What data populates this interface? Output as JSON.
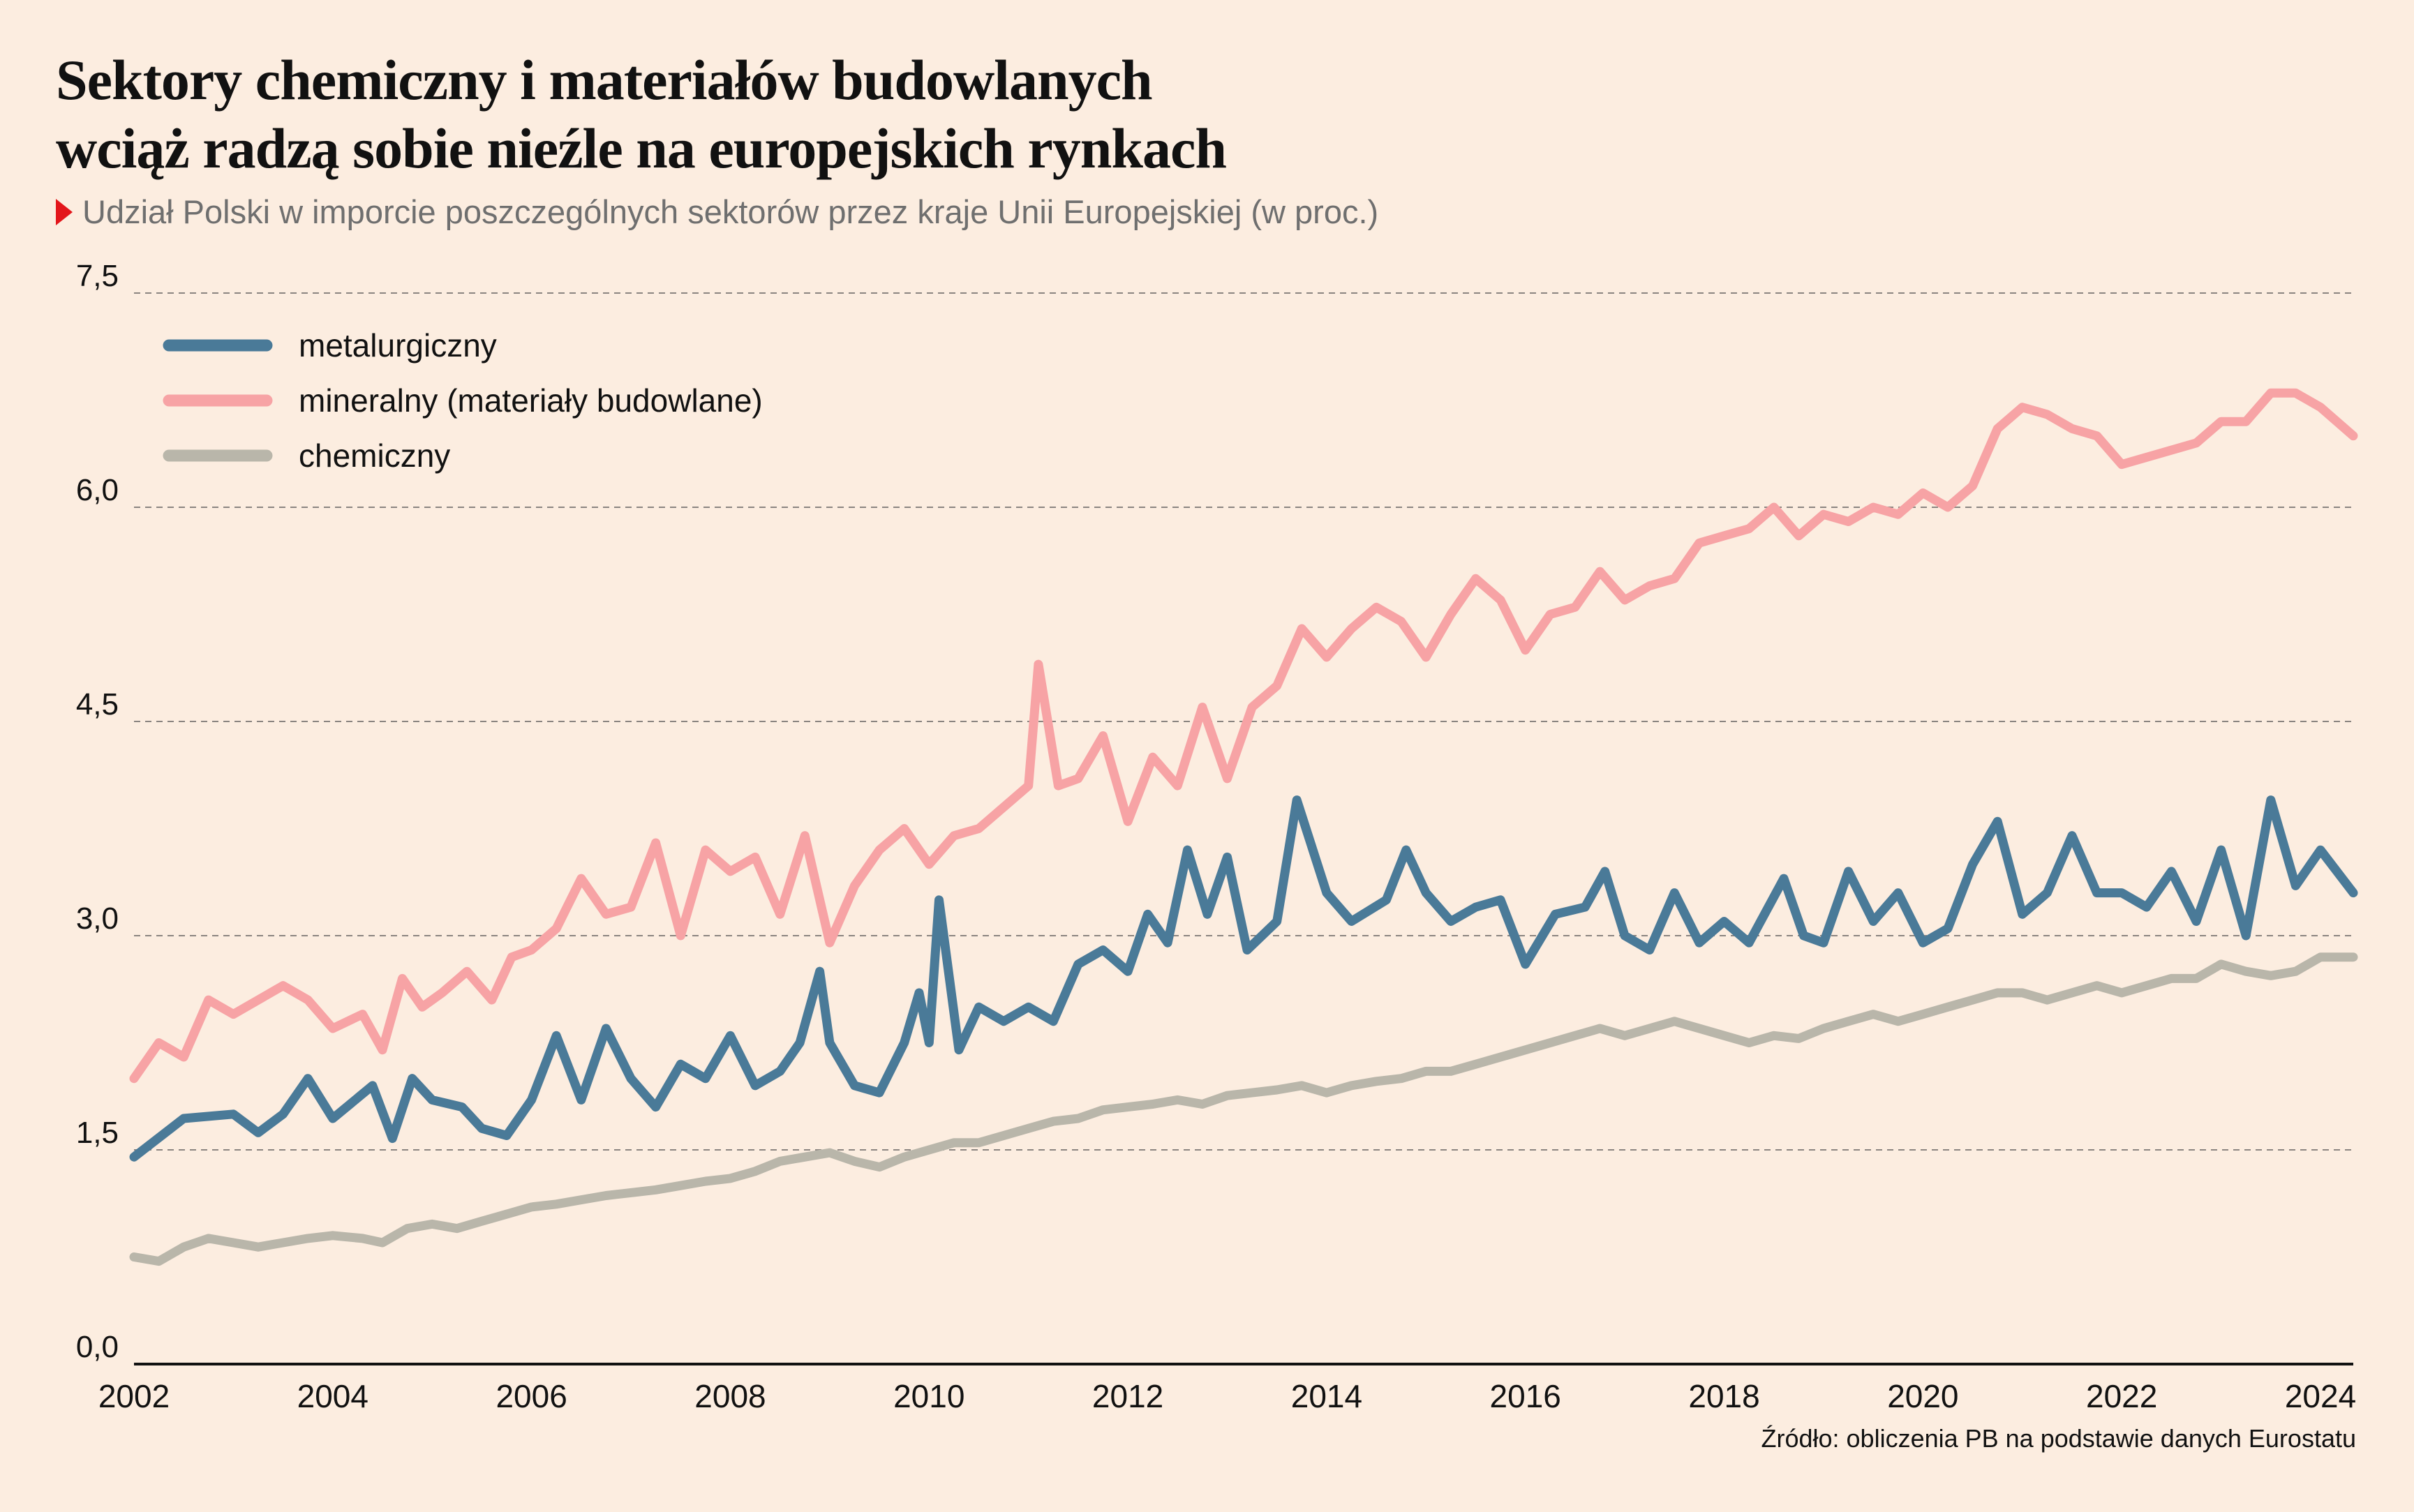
{
  "title": {
    "line1": "Sektory chemiczny i materiałów budowlanych",
    "line2": "wciąż radzą sobie nieźle na europejskich rynkach"
  },
  "subtitle": "Udział Polski w imporcie poszczególnych sektorów przez kraje Unii Europejskiej (w proc.)",
  "source": "Źródło: obliczenia PB na podstawie danych Eurostatu",
  "colors": {
    "background": "#fcede0",
    "metalurgiczny": "#4a7a98",
    "mineralny": "#f7a3a5",
    "chemiczny": "#b9b6aa",
    "accent": "#e3161b"
  },
  "chart_data": {
    "type": "line",
    "title": "Sektory chemiczny i materiałów budowlanych wciąż radzą sobie nieźle na europejskich rynkach",
    "subtitle": "Udział Polski w imporcie poszczególnych sektorów przez kraje Unii Europejskiej (w proc.)",
    "xlabel": "",
    "ylabel": "",
    "xlim": [
      2002.0,
      2024.33
    ],
    "ylim": [
      0,
      7.5
    ],
    "yticks": [
      0.0,
      1.5,
      3.0,
      4.5,
      6.0,
      7.5
    ],
    "ytick_labels": [
      "0,0",
      "1,5",
      "3,0",
      "4,5",
      "6,0",
      "7,5"
    ],
    "xticks": [
      2002,
      2004,
      2006,
      2008,
      2010,
      2012,
      2014,
      2016,
      2018,
      2020,
      2022,
      2024
    ],
    "xtick_labels": [
      "2002",
      "2004",
      "2006",
      "2008",
      "2010",
      "2012",
      "2014",
      "2016",
      "2018",
      "2020",
      "2022",
      "2024"
    ],
    "grid": "horizontal dashed",
    "legend_position": "top-left",
    "series": [
      {
        "name": "metalurgiczny",
        "color": "#4a7a98",
        "x": [
          2002.0,
          2002.5,
          2003.0,
          2003.25,
          2003.5,
          2003.75,
          2004.0,
          2004.4,
          2004.6,
          2004.8,
          2005.0,
          2005.3,
          2005.5,
          2005.75,
          2006.0,
          2006.25,
          2006.5,
          2006.75,
          2007.0,
          2007.25,
          2007.5,
          2007.75,
          2008.0,
          2008.25,
          2008.5,
          2008.7,
          2008.9,
          2009.0,
          2009.25,
          2009.5,
          2009.75,
          2009.9,
          2010.0,
          2010.1,
          2010.3,
          2010.5,
          2010.75,
          2011.0,
          2011.25,
          2011.5,
          2011.75,
          2012.0,
          2012.2,
          2012.4,
          2012.6,
          2012.8,
          2013.0,
          2013.2,
          2013.5,
          2013.7,
          2014.0,
          2014.25,
          2014.6,
          2014.8,
          2015.0,
          2015.25,
          2015.5,
          2015.75,
          2016.0,
          2016.3,
          2016.6,
          2016.8,
          2017.0,
          2017.25,
          2017.5,
          2017.75,
          2018.0,
          2018.25,
          2018.6,
          2018.8,
          2019.0,
          2019.25,
          2019.5,
          2019.75,
          2020.0,
          2020.25,
          2020.5,
          2020.75,
          2021.0,
          2021.25,
          2021.5,
          2021.75,
          2022.0,
          2022.25,
          2022.5,
          2022.75,
          2023.0,
          2023.25,
          2023.5,
          2023.75,
          2024.0,
          2024.33
        ],
        "values": [
          1.45,
          1.72,
          1.75,
          1.62,
          1.75,
          2.0,
          1.72,
          1.95,
          1.58,
          2.0,
          1.85,
          1.8,
          1.65,
          1.6,
          1.85,
          2.3,
          1.85,
          2.35,
          2.0,
          1.8,
          2.1,
          2.0,
          2.3,
          1.95,
          2.05,
          2.25,
          2.75,
          2.25,
          1.95,
          1.9,
          2.25,
          2.6,
          2.25,
          3.25,
          2.2,
          2.5,
          2.4,
          2.5,
          2.4,
          2.8,
          2.9,
          2.75,
          3.15,
          2.95,
          3.6,
          3.15,
          3.55,
          2.9,
          3.1,
          3.95,
          3.3,
          3.1,
          3.25,
          3.6,
          3.3,
          3.1,
          3.2,
          3.25,
          2.8,
          3.15,
          3.2,
          3.45,
          3.0,
          2.9,
          3.3,
          2.95,
          3.1,
          2.95,
          3.4,
          3.0,
          2.95,
          3.45,
          3.1,
          3.3,
          2.95,
          3.05,
          3.5,
          3.8,
          3.15,
          3.3,
          3.7,
          3.3,
          3.3,
          3.2,
          3.45,
          3.1,
          3.6,
          3.0,
          3.95,
          3.35,
          3.6,
          3.3
        ]
      },
      {
        "name": "mineralny (materiały budowlane)",
        "color": "#f7a3a5",
        "x": [
          2002.0,
          2002.25,
          2002.5,
          2002.75,
          2003.0,
          2003.25,
          2003.5,
          2003.75,
          2004.0,
          2004.3,
          2004.5,
          2004.7,
          2004.9,
          2005.1,
          2005.35,
          2005.6,
          2005.8,
          2006.0,
          2006.25,
          2006.5,
          2006.75,
          2007.0,
          2007.25,
          2007.5,
          2007.75,
          2008.0,
          2008.25,
          2008.5,
          2008.75,
          2009.0,
          2009.25,
          2009.5,
          2009.75,
          2010.0,
          2010.25,
          2010.5,
          2010.75,
          2011.0,
          2011.1,
          2011.3,
          2011.5,
          2011.75,
          2012.0,
          2012.25,
          2012.5,
          2012.75,
          2013.0,
          2013.25,
          2013.5,
          2013.75,
          2014.0,
          2014.25,
          2014.5,
          2014.75,
          2015.0,
          2015.25,
          2015.5,
          2015.75,
          2016.0,
          2016.25,
          2016.5,
          2016.75,
          2017.0,
          2017.25,
          2017.5,
          2017.75,
          2018.0,
          2018.25,
          2018.5,
          2018.75,
          2019.0,
          2019.25,
          2019.5,
          2019.75,
          2020.0,
          2020.25,
          2020.5,
          2020.75,
          2021.0,
          2021.25,
          2021.5,
          2021.75,
          2022.0,
          2022.25,
          2022.5,
          2022.75,
          2023.0,
          2023.25,
          2023.5,
          2023.75,
          2024.0,
          2024.33
        ],
        "values": [
          2.0,
          2.25,
          2.15,
          2.55,
          2.45,
          2.55,
          2.65,
          2.55,
          2.35,
          2.45,
          2.2,
          2.7,
          2.5,
          2.6,
          2.75,
          2.55,
          2.85,
          2.9,
          3.05,
          3.4,
          3.15,
          3.2,
          3.65,
          3.0,
          3.6,
          3.45,
          3.55,
          3.15,
          3.7,
          2.95,
          3.35,
          3.6,
          3.75,
          3.5,
          3.7,
          3.75,
          3.9,
          4.05,
          4.9,
          4.05,
          4.1,
          4.4,
          3.8,
          4.25,
          4.05,
          4.6,
          4.1,
          4.6,
          4.75,
          5.15,
          4.95,
          5.15,
          5.3,
          5.2,
          4.95,
          5.25,
          5.5,
          5.35,
          5.0,
          5.25,
          5.3,
          5.55,
          5.35,
          5.45,
          5.5,
          5.75,
          5.8,
          5.85,
          6.0,
          5.8,
          5.95,
          5.9,
          6.0,
          5.95,
          6.1,
          6.0,
          6.15,
          6.55,
          6.7,
          6.65,
          6.55,
          6.5,
          6.3,
          6.35,
          6.4,
          6.45,
          6.6,
          6.6,
          6.8,
          6.8,
          6.7,
          6.5
        ]
      },
      {
        "name": "chemiczny",
        "color": "#b9b6aa",
        "x": [
          2002.0,
          2002.25,
          2002.5,
          2002.75,
          2003.0,
          2003.25,
          2003.5,
          2003.75,
          2004.0,
          2004.3,
          2004.5,
          2004.75,
          2005.0,
          2005.25,
          2005.5,
          2005.75,
          2006.0,
          2006.25,
          2006.5,
          2006.75,
          2007.0,
          2007.25,
          2007.5,
          2007.75,
          2008.0,
          2008.25,
          2008.5,
          2008.75,
          2009.0,
          2009.25,
          2009.5,
          2009.75,
          2010.0,
          2010.25,
          2010.5,
          2010.75,
          2011.0,
          2011.25,
          2011.5,
          2011.75,
          2012.0,
          2012.25,
          2012.5,
          2012.75,
          2013.0,
          2013.25,
          2013.5,
          2013.75,
          2014.0,
          2014.25,
          2014.5,
          2014.75,
          2015.0,
          2015.25,
          2015.5,
          2015.75,
          2016.0,
          2016.25,
          2016.5,
          2016.75,
          2017.0,
          2017.25,
          2017.5,
          2017.75,
          2018.0,
          2018.25,
          2018.5,
          2018.75,
          2019.0,
          2019.25,
          2019.5,
          2019.75,
          2020.0,
          2020.25,
          2020.5,
          2020.75,
          2021.0,
          2021.25,
          2021.5,
          2021.75,
          2022.0,
          2022.25,
          2022.5,
          2022.75,
          2023.0,
          2023.25,
          2023.5,
          2023.75,
          2024.0,
          2024.33
        ],
        "values": [
          0.75,
          0.72,
          0.82,
          0.88,
          0.85,
          0.82,
          0.85,
          0.88,
          0.9,
          0.88,
          0.85,
          0.95,
          0.98,
          0.95,
          1.0,
          1.05,
          1.1,
          1.12,
          1.15,
          1.18,
          1.2,
          1.22,
          1.25,
          1.28,
          1.3,
          1.35,
          1.42,
          1.45,
          1.48,
          1.42,
          1.38,
          1.45,
          1.5,
          1.55,
          1.55,
          1.6,
          1.65,
          1.7,
          1.72,
          1.78,
          1.8,
          1.82,
          1.85,
          1.82,
          1.88,
          1.9,
          1.92,
          1.95,
          1.9,
          1.95,
          1.98,
          2.0,
          2.05,
          2.05,
          2.1,
          2.15,
          2.2,
          2.25,
          2.3,
          2.35,
          2.3,
          2.35,
          2.4,
          2.35,
          2.3,
          2.25,
          2.3,
          2.28,
          2.35,
          2.4,
          2.45,
          2.4,
          2.45,
          2.5,
          2.55,
          2.6,
          2.6,
          2.55,
          2.6,
          2.65,
          2.6,
          2.65,
          2.7,
          2.7,
          2.8,
          2.75,
          2.72,
          2.75,
          2.85,
          2.85
        ]
      }
    ]
  }
}
